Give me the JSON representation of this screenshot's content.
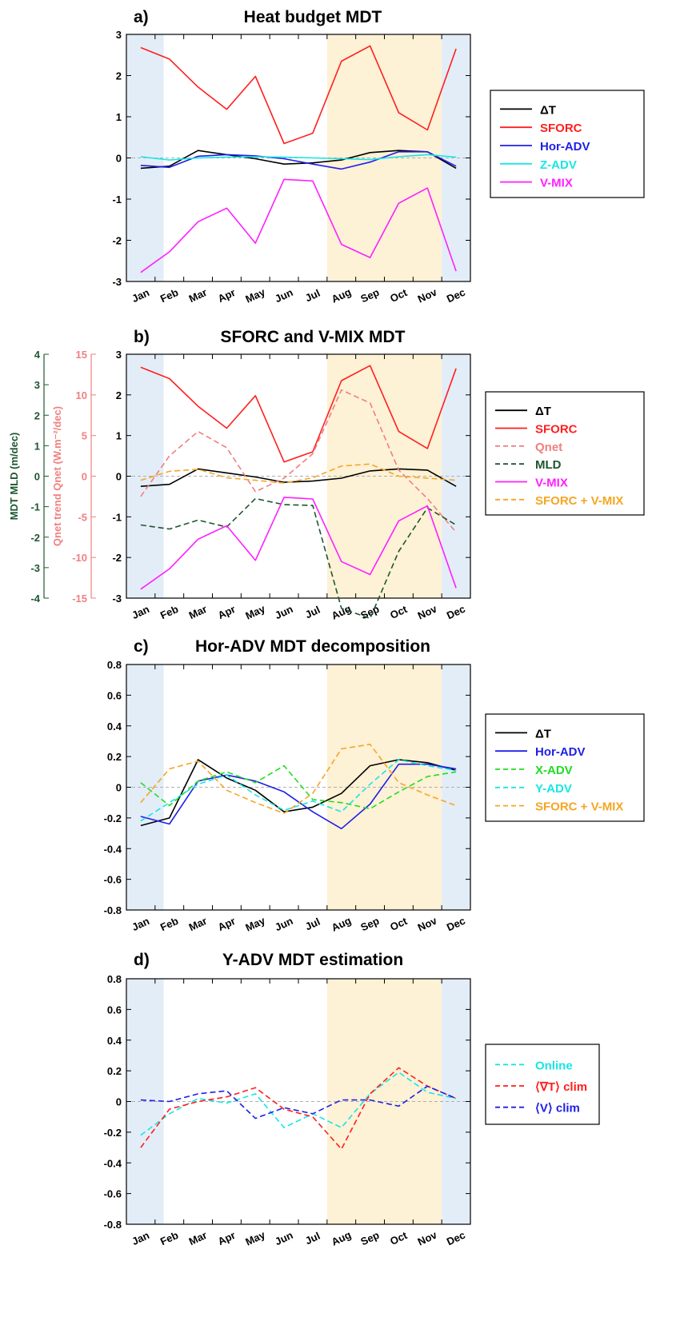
{
  "months": [
    "Jan",
    "Feb",
    "Mar",
    "Apr",
    "May",
    "Jun",
    "Jul",
    "Aug",
    "Sep",
    "Oct",
    "Nov",
    "Dec"
  ],
  "colors": {
    "winter_shade": "#e3edf8",
    "summer_shade": "#fdf1d6",
    "black": "#000000",
    "red": "#ff1f1f",
    "blue": "#1f1fe6",
    "cyan": "#19e6e6",
    "magenta": "#ff1fff",
    "salmon": "#f08080",
    "dkgreen": "#1e5631",
    "orange": "#f5a623",
    "green": "#22dd22",
    "zero_line": "#b0b0b0"
  },
  "chart_data": [
    {
      "type": "line",
      "panel": "a)",
      "title": "Heat budget MDT",
      "x": [
        0.5,
        1.5,
        2.5,
        3.5,
        4.5,
        5.5,
        6.5,
        7.5,
        8.5,
        9.5,
        10.5,
        11.5
      ],
      "xlim": [
        0,
        12
      ],
      "ylim": [
        -3,
        3
      ],
      "yticks": [
        -3,
        -2,
        -1,
        0,
        1,
        2,
        3
      ],
      "shading": [
        {
          "from": 0,
          "to": 1.3,
          "color": "winter"
        },
        {
          "from": 7.0,
          "to": 11.0,
          "color": "summer"
        },
        {
          "from": 11.0,
          "to": 12,
          "color": "winter"
        }
      ],
      "series": [
        {
          "name": "ΔT",
          "color": "black",
          "dash": false,
          "values": [
            -0.25,
            -0.2,
            0.18,
            0.08,
            -0.02,
            -0.15,
            -0.12,
            -0.05,
            0.13,
            0.18,
            0.15,
            -0.25
          ]
        },
        {
          "name": "SFORC",
          "color": "red",
          "dash": false,
          "values": [
            2.68,
            2.4,
            1.72,
            1.18,
            1.98,
            0.35,
            0.6,
            2.35,
            2.72,
            1.1,
            0.68,
            2.65
          ]
        },
        {
          "name": "Hor-ADV",
          "color": "blue",
          "dash": false,
          "values": [
            -0.18,
            -0.23,
            0.04,
            0.08,
            0.05,
            -0.02,
            -0.15,
            -0.27,
            -0.1,
            0.15,
            0.15,
            -0.2
          ]
        },
        {
          "name": "Z-ADV",
          "color": "cyan",
          "dash": false,
          "values": [
            0.03,
            -0.05,
            0.0,
            0.02,
            0.03,
            0.02,
            0.0,
            -0.02,
            -0.04,
            0.03,
            0.08,
            0.02
          ]
        },
        {
          "name": "V-MIX",
          "color": "magenta",
          "dash": false,
          "values": [
            -2.78,
            -2.28,
            -1.55,
            -1.22,
            -2.07,
            -0.52,
            -0.56,
            -2.1,
            -2.42,
            -1.1,
            -0.73,
            -2.75
          ]
        }
      ]
    },
    {
      "type": "line",
      "panel": "b)",
      "title": "SFORC and V-MIX  MDT",
      "x": [
        0.5,
        1.5,
        2.5,
        3.5,
        4.5,
        5.5,
        6.5,
        7.5,
        8.5,
        9.5,
        10.5,
        11.5
      ],
      "xlim": [
        0,
        12
      ],
      "ylim": [
        -3,
        3
      ],
      "yticks": [
        -3,
        -2,
        -1,
        0,
        1,
        2,
        3
      ],
      "secondary_axes": [
        {
          "label": "Qnet trend Qnet (W.m⁻²/dec)",
          "color": "salmon",
          "ylim": [
            -15,
            15
          ],
          "ticks": [
            -15,
            -10,
            -5,
            0,
            5,
            10,
            15
          ]
        },
        {
          "label": "MDT MLD (m/dec)",
          "color": "dkgreen",
          "ylim": [
            -4,
            4
          ],
          "ticks": [
            -4,
            -3,
            -2,
            -1,
            0,
            1,
            2,
            3,
            4
          ]
        }
      ],
      "shading": [
        {
          "from": 0,
          "to": 1.3,
          "color": "winter"
        },
        {
          "from": 7.0,
          "to": 11.0,
          "color": "summer"
        },
        {
          "from": 11.0,
          "to": 12,
          "color": "winter"
        }
      ],
      "series": [
        {
          "name": "ΔT",
          "color": "black",
          "dash": false,
          "values": [
            -0.25,
            -0.2,
            0.18,
            0.08,
            -0.02,
            -0.15,
            -0.12,
            -0.05,
            0.13,
            0.18,
            0.15,
            -0.25
          ]
        },
        {
          "name": "SFORC",
          "color": "red",
          "dash": false,
          "values": [
            2.68,
            2.4,
            1.72,
            1.18,
            1.98,
            0.35,
            0.6,
            2.35,
            2.72,
            1.1,
            0.68,
            2.65
          ]
        },
        {
          "name": "Qnet",
          "color": "salmon",
          "dash": true,
          "values": [
            -0.5,
            0.5,
            1.1,
            0.7,
            -0.38,
            -0.05,
            0.55,
            2.12,
            1.8,
            0.15,
            -0.55,
            -1.38
          ],
          "axis_values": [
            -2.5,
            2.5,
            5.5,
            3.5,
            -1.9,
            -0.25,
            2.75,
            10.6,
            9.0,
            0.75,
            -2.75,
            -6.9
          ]
        },
        {
          "name": "MLD",
          "color": "dkgreen",
          "dash": true,
          "values": [
            -1.2,
            -1.3,
            -1.08,
            -1.25,
            -0.55,
            -0.7,
            -0.72,
            -3.25,
            -3.5,
            -1.85,
            -0.78,
            -1.2
          ],
          "axis_values": [
            -1.6,
            -1.73,
            -1.44,
            -1.67,
            -0.73,
            -0.93,
            -0.96,
            -4.33,
            -4.67,
            -2.47,
            -1.04,
            -1.6
          ]
        },
        {
          "name": "V-MIX",
          "color": "magenta",
          "dash": false,
          "values": [
            -2.78,
            -2.28,
            -1.55,
            -1.22,
            -2.07,
            -0.52,
            -0.56,
            -2.1,
            -2.42,
            -1.1,
            -0.73,
            -2.75
          ]
        },
        {
          "name": "SFORC + V-MIX",
          "color": "orange",
          "dash": true,
          "values": [
            -0.1,
            0.12,
            0.17,
            -0.04,
            -0.1,
            -0.17,
            -0.04,
            0.25,
            0.3,
            0.0,
            -0.05,
            -0.1
          ]
        }
      ]
    },
    {
      "type": "line",
      "panel": "c)",
      "title": "Hor-ADV MDT decomposition",
      "x": [
        0.5,
        1.5,
        2.5,
        3.5,
        4.5,
        5.5,
        6.5,
        7.5,
        8.5,
        9.5,
        10.5,
        11.5
      ],
      "xlim": [
        0,
        12
      ],
      "ylim": [
        -0.8,
        0.8
      ],
      "yticks": [
        -0.8,
        -0.6,
        -0.4,
        -0.2,
        0,
        0.2,
        0.4,
        0.6,
        0.8
      ],
      "shading": [
        {
          "from": 0,
          "to": 1.3,
          "color": "winter"
        },
        {
          "from": 7.0,
          "to": 11.0,
          "color": "summer"
        },
        {
          "from": 11.0,
          "to": 12,
          "color": "winter"
        }
      ],
      "series": [
        {
          "name": "ΔT",
          "color": "black",
          "dash": false,
          "values": [
            -0.25,
            -0.2,
            0.18,
            0.06,
            -0.02,
            -0.16,
            -0.13,
            -0.04,
            0.14,
            0.18,
            0.16,
            0.11
          ]
        },
        {
          "name": "Hor-ADV",
          "color": "blue",
          "dash": false,
          "values": [
            -0.19,
            -0.24,
            0.04,
            0.08,
            0.04,
            -0.03,
            -0.16,
            -0.27,
            -0.11,
            0.15,
            0.15,
            0.12
          ]
        },
        {
          "name": "X-ADV",
          "color": "green",
          "dash": true,
          "values": [
            0.03,
            -0.12,
            0.04,
            0.1,
            0.03,
            0.14,
            -0.08,
            -0.1,
            -0.14,
            -0.03,
            0.07,
            0.1
          ]
        },
        {
          "name": "Y-ADV",
          "color": "cyan",
          "dash": true,
          "values": [
            -0.22,
            -0.1,
            0.02,
            0.08,
            -0.05,
            -0.15,
            -0.09,
            -0.16,
            0.02,
            0.18,
            0.14,
            0.11
          ]
        },
        {
          "name": "SFORC + V-MIX",
          "color": "orange",
          "dash": true,
          "values": [
            -0.1,
            0.12,
            0.17,
            -0.02,
            -0.1,
            -0.17,
            -0.04,
            0.25,
            0.28,
            0.03,
            -0.05,
            -0.12
          ]
        }
      ]
    },
    {
      "type": "line",
      "panel": "d)",
      "title": "Y-ADV MDT estimation",
      "x": [
        0.5,
        1.5,
        2.5,
        3.5,
        4.5,
        5.5,
        6.5,
        7.5,
        8.5,
        9.5,
        10.5,
        11.5
      ],
      "xlim": [
        0,
        12
      ],
      "ylim": [
        -0.8,
        0.8
      ],
      "yticks": [
        -0.8,
        -0.6,
        -0.4,
        -0.2,
        0,
        0.2,
        0.4,
        0.6,
        0.8
      ],
      "shading": [
        {
          "from": 0,
          "to": 1.3,
          "color": "winter"
        },
        {
          "from": 7.0,
          "to": 11.0,
          "color": "summer"
        },
        {
          "from": 11.0,
          "to": 12,
          "color": "winter"
        }
      ],
      "series": [
        {
          "name": "Online",
          "color": "cyan",
          "dash": true,
          "values": [
            -0.22,
            -0.08,
            0.02,
            -0.01,
            0.05,
            -0.17,
            -0.08,
            -0.17,
            0.05,
            0.19,
            0.06,
            0.02
          ]
        },
        {
          "name": "⟨∇T⟩ clim",
          "color": "red",
          "dash": true,
          "values": [
            -0.3,
            -0.05,
            0.0,
            0.03,
            0.09,
            -0.05,
            -0.1,
            -0.31,
            0.05,
            0.22,
            0.1,
            0.02
          ]
        },
        {
          "name": "⟨V⟩ clim",
          "color": "blue",
          "dash": true,
          "values": [
            0.01,
            0.0,
            0.05,
            0.07,
            -0.11,
            -0.04,
            -0.08,
            0.01,
            0.01,
            -0.03,
            0.1,
            0.02
          ]
        }
      ]
    }
  ]
}
